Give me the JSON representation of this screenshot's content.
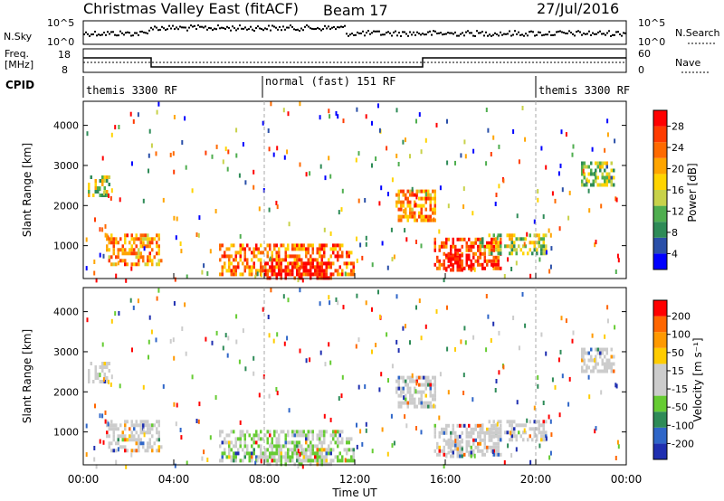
{
  "header": {
    "title": "Christmas Valley East (fitACF)",
    "beam": "Beam 17",
    "date": "27/Jul/2016"
  },
  "noise_panel": {
    "left_label": "N.Sky",
    "right_label": "N.Search",
    "ticks_left": [
      "10^5",
      "10^0"
    ],
    "ticks_right": [
      "10^5",
      "10^0"
    ]
  },
  "freq_panel": {
    "left_label_1": "Freq.",
    "left_label_2": "[MHz]",
    "ticks_left": [
      "18",
      "8"
    ],
    "right_label": "Nave",
    "ticks_right": [
      "60",
      "0"
    ]
  },
  "cpid_panel": {
    "label": "CPID",
    "segments": [
      "themis 3300 RF",
      "normal (fast) 151 RF",
      "themis 3300 RF"
    ]
  },
  "chart_data": [
    {
      "type": "heatmap",
      "name": "power",
      "ylabel": "Slant Range [km]",
      "xlabel": "Time UT",
      "y_ticks": [
        1000,
        2000,
        3000,
        4000
      ],
      "x_ticks": [
        "00:00",
        "04:00",
        "08:00",
        "12:00",
        "16:00",
        "20:00",
        "00:00"
      ],
      "x_range_hours": [
        0,
        24
      ],
      "y_range_km": [
        180,
        4600
      ],
      "colorbar": {
        "label": "Power [dB]",
        "ticks": [
          "4",
          "8",
          "12",
          "16",
          "20",
          "24",
          "28"
        ],
        "colors": [
          "#0000ff",
          "#2a4fa8",
          "#2e8b57",
          "#4fae4f",
          "#c8d24a",
          "#ffd400",
          "#ffa500",
          "#ff6a00",
          "#ff3b00",
          "#ff0000"
        ]
      },
      "regions": [
        {
          "t0": 0.2,
          "t1": 1.2,
          "r0": 2250,
          "r1": 2750,
          "level": 0.45
        },
        {
          "t0": 1.0,
          "t1": 3.5,
          "r0": 500,
          "r1": 1300,
          "level": 0.7
        },
        {
          "t0": 6.0,
          "t1": 12.0,
          "r0": 300,
          "r1": 1050,
          "level": 0.75
        },
        {
          "t0": 8.0,
          "t1": 11.0,
          "r0": 180,
          "r1": 600,
          "level": 0.95
        },
        {
          "t0": 13.8,
          "t1": 15.6,
          "r0": 1600,
          "r1": 2400,
          "level": 0.7
        },
        {
          "t0": 15.5,
          "t1": 18.5,
          "r0": 400,
          "r1": 1200,
          "level": 0.85
        },
        {
          "t0": 16.0,
          "t1": 17.2,
          "r0": 400,
          "r1": 800,
          "level": 1.0
        },
        {
          "t0": 17.5,
          "t1": 20.5,
          "r0": 800,
          "r1": 1300,
          "level": 0.45
        },
        {
          "t0": 22.0,
          "t1": 23.5,
          "r0": 2500,
          "r1": 3100,
          "level": 0.4
        }
      ]
    },
    {
      "type": "heatmap",
      "name": "velocity",
      "ylabel": "Slant Range [km]",
      "xlabel": "Time UT",
      "y_ticks": [
        1000,
        2000,
        3000,
        4000
      ],
      "x_ticks": [
        "00:00",
        "04:00",
        "08:00",
        "12:00",
        "16:00",
        "20:00",
        "00:00"
      ],
      "x_range_hours": [
        0,
        24
      ],
      "y_range_km": [
        180,
        4600
      ],
      "colorbar": {
        "label": "Velocity [m s⁻¹]",
        "ticks": [
          "200",
          "100",
          "50",
          "15",
          "-15",
          "-50",
          "-100",
          "-200"
        ],
        "colors": [
          "#1f2fb0",
          "#2f66c8",
          "#2e8b57",
          "#66cc33",
          "#cccccc",
          "#cccccc",
          "#ffcc00",
          "#ff9900",
          "#ff6600",
          "#ff0000"
        ]
      }
    }
  ]
}
